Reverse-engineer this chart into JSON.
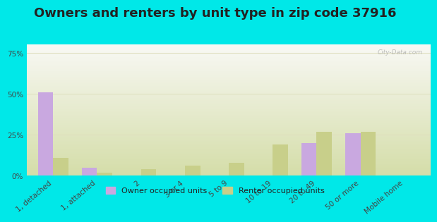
{
  "title": "Owners and renters by unit type in zip code 37916",
  "categories": [
    "1, detached",
    "1, attached",
    "2",
    "3 or 4",
    "5 to 9",
    "10 to 19",
    "20 to 49",
    "50 or more",
    "Mobile home"
  ],
  "owner_values": [
    51,
    5,
    0,
    0,
    0,
    0,
    20,
    26,
    0
  ],
  "renter_values": [
    11,
    2,
    4,
    6,
    8,
    19,
    27,
    27,
    0
  ],
  "owner_color": "#c9a8e0",
  "renter_color": "#c8cf8a",
  "background_outer": "#00e8e8",
  "ylabel_ticks": [
    "0%",
    "25%",
    "50%",
    "75%"
  ],
  "ytick_vals": [
    0,
    25,
    50,
    75
  ],
  "ylim": [
    0,
    80
  ],
  "bar_width": 0.35,
  "legend_owner": "Owner occupied units",
  "legend_renter": "Renter occupied units",
  "title_fontsize": 13,
  "tick_fontsize": 7.5,
  "watermark": "City-Data.com",
  "grad_top": "#f8f8f4",
  "grad_bottom": "#d4dda8"
}
